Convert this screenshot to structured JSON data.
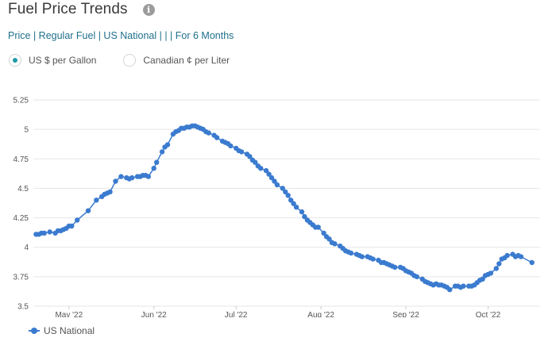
{
  "header": {
    "title": "Fuel Price Trends",
    "info_icon": "info-icon"
  },
  "breadcrumb": "Price | Regular Fuel | US National | | | For 6 Months",
  "units": {
    "options": [
      {
        "label": "US $ per Gallon",
        "selected": true
      },
      {
        "label": "Canadian ¢ per Liter",
        "selected": false
      }
    ]
  },
  "colors": {
    "series": "#3b7bcf",
    "accent": "#1f9aa6",
    "grid": "#e6e6e6"
  },
  "legend": {
    "label": "US National"
  },
  "chart_data": {
    "type": "line",
    "title": "",
    "xlabel": "",
    "ylabel": "",
    "ylim": [
      3.5,
      5.25
    ],
    "yticks": [
      "5.25",
      "5",
      "4.75",
      "4.5",
      "4.25",
      "4",
      "3.75",
      "3.5"
    ],
    "xlim": [
      "2022-04-18",
      "2022-10-20"
    ],
    "xticks": [
      {
        "label": "May '22",
        "date": "2022-05-01"
      },
      {
        "label": "Jun '22",
        "date": "2022-06-01"
      },
      {
        "label": "Jul '22",
        "date": "2022-07-01"
      },
      {
        "label": "Aug '22",
        "date": "2022-08-01"
      },
      {
        "label": "Sep '22",
        "date": "2022-09-01"
      },
      {
        "label": "Oct '22",
        "date": "2022-10-01"
      }
    ],
    "grid": true,
    "legend_position": "bottom-left",
    "series": [
      {
        "name": "US National",
        "points": [
          [
            "2022-04-19",
            4.11
          ],
          [
            "2022-04-20",
            4.11
          ],
          [
            "2022-04-21",
            4.12
          ],
          [
            "2022-04-22",
            4.12
          ],
          [
            "2022-04-24",
            4.13
          ],
          [
            "2022-04-26",
            4.12
          ],
          [
            "2022-04-27",
            4.14
          ],
          [
            "2022-04-28",
            4.14
          ],
          [
            "2022-04-29",
            4.15
          ],
          [
            "2022-04-30",
            4.16
          ],
          [
            "2022-05-01",
            4.18
          ],
          [
            "2022-05-02",
            4.18
          ],
          [
            "2022-05-04",
            4.23
          ],
          [
            "2022-05-08",
            4.31
          ],
          [
            "2022-05-11",
            4.4
          ],
          [
            "2022-05-13",
            4.43
          ],
          [
            "2022-05-14",
            4.45
          ],
          [
            "2022-05-15",
            4.46
          ],
          [
            "2022-05-16",
            4.47
          ],
          [
            "2022-05-18",
            4.56
          ],
          [
            "2022-05-20",
            4.6
          ],
          [
            "2022-05-22",
            4.59
          ],
          [
            "2022-05-23",
            4.58
          ],
          [
            "2022-05-24",
            4.59
          ],
          [
            "2022-05-26",
            4.6
          ],
          [
            "2022-05-27",
            4.6
          ],
          [
            "2022-05-28",
            4.61
          ],
          [
            "2022-05-29",
            4.61
          ],
          [
            "2022-05-30",
            4.6
          ],
          [
            "2022-06-01",
            4.67
          ],
          [
            "2022-06-02",
            4.72
          ],
          [
            "2022-06-04",
            4.81
          ],
          [
            "2022-06-05",
            4.85
          ],
          [
            "2022-06-06",
            4.87
          ],
          [
            "2022-06-08",
            4.96
          ],
          [
            "2022-06-09",
            4.98
          ],
          [
            "2022-06-10",
            4.99
          ],
          [
            "2022-06-11",
            5.01
          ],
          [
            "2022-06-12",
            5.01
          ],
          [
            "2022-06-13",
            5.02
          ],
          [
            "2022-06-14",
            5.02
          ],
          [
            "2022-06-15",
            5.03
          ],
          [
            "2022-06-16",
            5.03
          ],
          [
            "2022-06-17",
            5.02
          ],
          [
            "2022-06-18",
            5.01
          ],
          [
            "2022-06-19",
            5.0
          ],
          [
            "2022-06-20",
            4.98
          ],
          [
            "2022-06-21",
            4.97
          ],
          [
            "2022-06-23",
            4.95
          ],
          [
            "2022-06-24",
            4.93
          ],
          [
            "2022-06-26",
            4.9
          ],
          [
            "2022-06-27",
            4.89
          ],
          [
            "2022-06-28",
            4.88
          ],
          [
            "2022-06-29",
            4.86
          ],
          [
            "2022-07-01",
            4.84
          ],
          [
            "2022-07-02",
            4.82
          ],
          [
            "2022-07-03",
            4.81
          ],
          [
            "2022-07-05",
            4.79
          ],
          [
            "2022-07-06",
            4.77
          ],
          [
            "2022-07-07",
            4.74
          ],
          [
            "2022-07-08",
            4.72
          ],
          [
            "2022-07-09",
            4.69
          ],
          [
            "2022-07-10",
            4.67
          ],
          [
            "2022-07-12",
            4.65
          ],
          [
            "2022-07-13",
            4.62
          ],
          [
            "2022-07-14",
            4.59
          ],
          [
            "2022-07-15",
            4.56
          ],
          [
            "2022-07-16",
            4.53
          ],
          [
            "2022-07-18",
            4.5
          ],
          [
            "2022-07-19",
            4.47
          ],
          [
            "2022-07-20",
            4.44
          ],
          [
            "2022-07-21",
            4.4
          ],
          [
            "2022-07-22",
            4.37
          ],
          [
            "2022-07-23",
            4.34
          ],
          [
            "2022-07-25",
            4.3
          ],
          [
            "2022-07-26",
            4.26
          ],
          [
            "2022-07-27",
            4.23
          ],
          [
            "2022-07-28",
            4.21
          ],
          [
            "2022-07-29",
            4.19
          ],
          [
            "2022-07-30",
            4.17
          ],
          [
            "2022-07-31",
            4.17
          ],
          [
            "2022-08-02",
            4.12
          ],
          [
            "2022-08-03",
            4.09
          ],
          [
            "2022-08-04",
            4.07
          ],
          [
            "2022-08-05",
            4.04
          ],
          [
            "2022-08-06",
            4.03
          ],
          [
            "2022-08-08",
            4.01
          ],
          [
            "2022-08-09",
            3.99
          ],
          [
            "2022-08-10",
            3.97
          ],
          [
            "2022-08-11",
            3.96
          ],
          [
            "2022-08-12",
            3.95
          ],
          [
            "2022-08-14",
            3.94
          ],
          [
            "2022-08-15",
            3.93
          ],
          [
            "2022-08-16",
            3.92
          ],
          [
            "2022-08-18",
            3.92
          ],
          [
            "2022-08-19",
            3.91
          ],
          [
            "2022-08-20",
            3.9
          ],
          [
            "2022-08-22",
            3.89
          ],
          [
            "2022-08-23",
            3.87
          ],
          [
            "2022-08-24",
            3.87
          ],
          [
            "2022-08-25",
            3.86
          ],
          [
            "2022-08-26",
            3.85
          ],
          [
            "2022-08-27",
            3.84
          ],
          [
            "2022-08-28",
            3.83
          ],
          [
            "2022-08-30",
            3.83
          ],
          [
            "2022-08-31",
            3.82
          ],
          [
            "2022-09-01",
            3.8
          ],
          [
            "2022-09-02",
            3.79
          ],
          [
            "2022-09-03",
            3.78
          ],
          [
            "2022-09-04",
            3.76
          ],
          [
            "2022-09-05",
            3.75
          ],
          [
            "2022-09-07",
            3.73
          ],
          [
            "2022-09-08",
            3.71
          ],
          [
            "2022-09-09",
            3.7
          ],
          [
            "2022-09-10",
            3.69
          ],
          [
            "2022-09-11",
            3.68
          ],
          [
            "2022-09-12",
            3.69
          ],
          [
            "2022-09-13",
            3.68
          ],
          [
            "2022-09-14",
            3.68
          ],
          [
            "2022-09-15",
            3.67
          ],
          [
            "2022-09-16",
            3.66
          ],
          [
            "2022-09-17",
            3.64
          ],
          [
            "2022-09-19",
            3.67
          ],
          [
            "2022-09-20",
            3.67
          ],
          [
            "2022-09-21",
            3.66
          ],
          [
            "2022-09-22",
            3.67
          ],
          [
            "2022-09-24",
            3.67
          ],
          [
            "2022-09-25",
            3.67
          ],
          [
            "2022-09-26",
            3.68
          ],
          [
            "2022-09-27",
            3.7
          ],
          [
            "2022-09-28",
            3.72
          ],
          [
            "2022-09-29",
            3.73
          ],
          [
            "2022-09-30",
            3.76
          ],
          [
            "2022-10-01",
            3.77
          ],
          [
            "2022-10-02",
            3.78
          ],
          [
            "2022-10-04",
            3.82
          ],
          [
            "2022-10-05",
            3.86
          ],
          [
            "2022-10-06",
            3.9
          ],
          [
            "2022-10-07",
            3.91
          ],
          [
            "2022-10-08",
            3.93
          ],
          [
            "2022-10-10",
            3.94
          ],
          [
            "2022-10-11",
            3.92
          ],
          [
            "2022-10-12",
            3.93
          ],
          [
            "2022-10-13",
            3.92
          ],
          [
            "2022-10-17",
            3.87
          ]
        ]
      }
    ]
  }
}
